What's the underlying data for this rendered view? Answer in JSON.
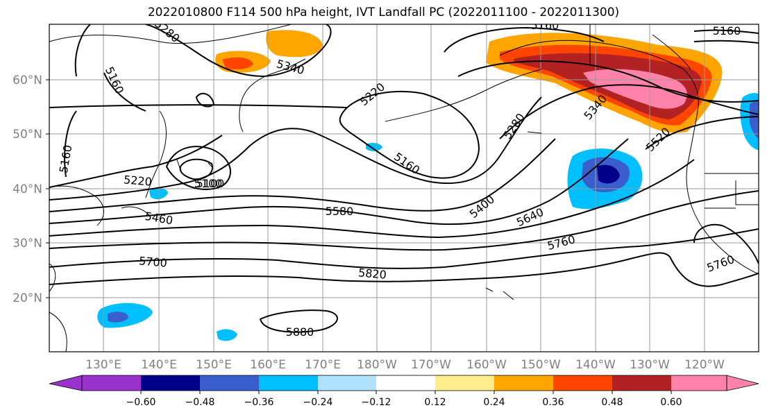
{
  "title": "2022010800 F114 500 hPa height, IVT Landfall PC (2022011100 - 2022011300)",
  "lat_labels": [
    "20°N",
    "30°N",
    "40°N",
    "50°N",
    "60°N"
  ],
  "lon_labels": [
    "130°E",
    "140°E",
    "150°E",
    "160°E",
    "170°E",
    "180°W",
    "170°W",
    "160°W",
    "150°W",
    "140°W",
    "130°W",
    "120°W"
  ],
  "contour_labels": [
    "5280",
    "5160",
    "5340",
    "5100",
    "5160",
    "5220",
    "5160",
    "5280",
    "5340",
    "5160",
    "5520",
    "5160",
    "5220",
    "5100",
    "5460",
    "5580",
    "5400",
    "5640",
    "5700",
    "5760",
    "5820",
    "5760",
    "5880"
  ],
  "colorbar": {
    "ticks": [
      "−0.60",
      "−0.48",
      "−0.36",
      "−0.24",
      "−0.12",
      "0.12",
      "0.24",
      "0.36",
      "0.48",
      "0.60"
    ],
    "colors": [
      "#9932cc",
      "#00008b",
      "#3a5fcd",
      "#00bfff",
      "#b0e2ff",
      "#ffffff",
      "#ffec8b",
      "#ffa500",
      "#ff4500",
      "#b22222",
      "#ff82ab"
    ]
  }
}
